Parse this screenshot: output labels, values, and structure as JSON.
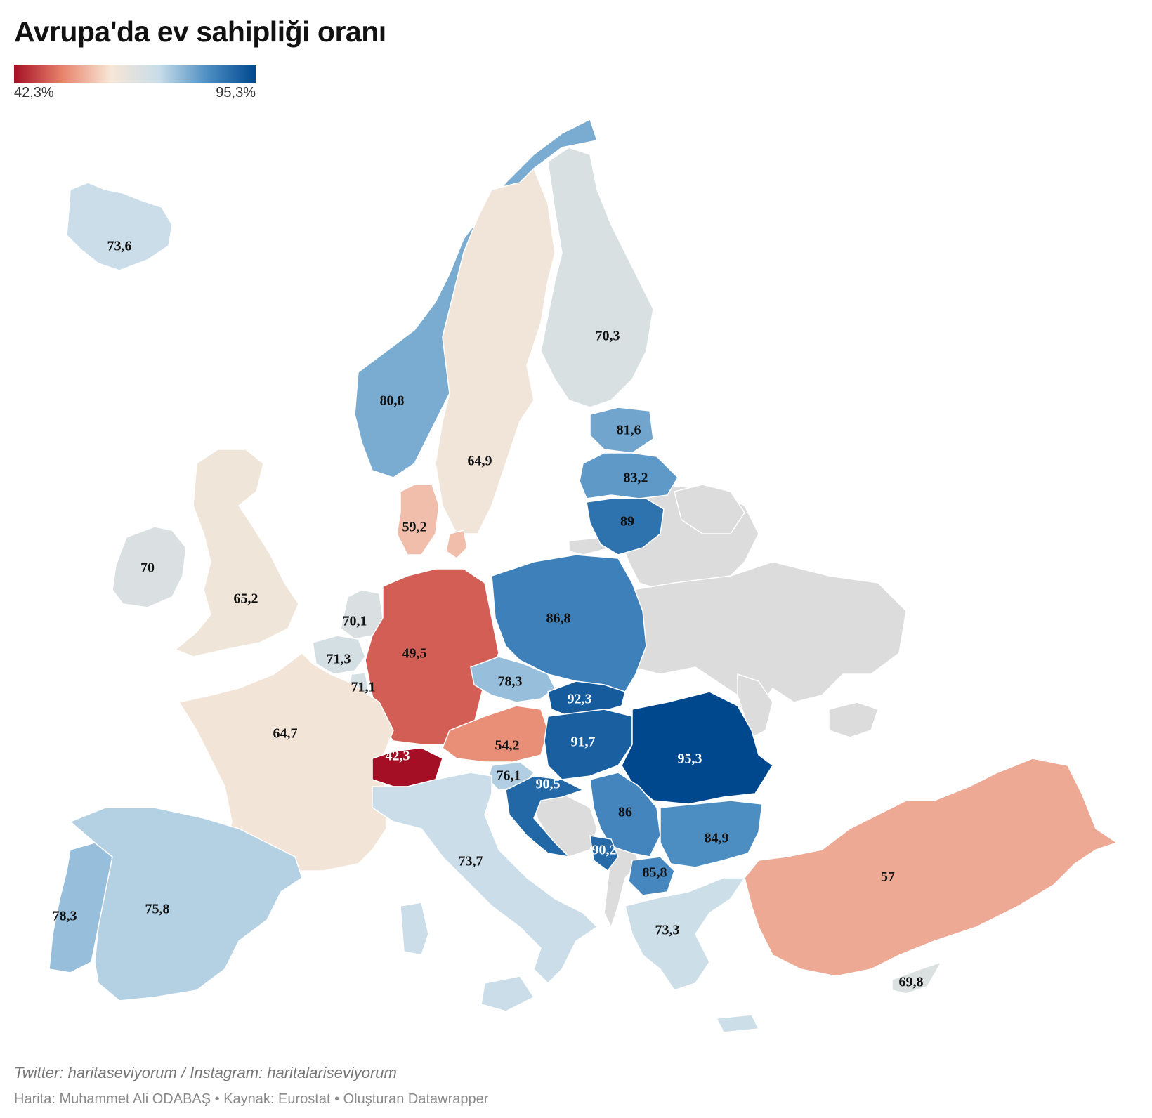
{
  "title": "Avrupa'da ev sahipliği oranı",
  "legend": {
    "min_label": "42,3%",
    "max_label": "95,3%",
    "min_value": 42.3,
    "max_value": 95.3,
    "colors": [
      "#a50f25",
      "#e7836b",
      "#f7e6d6",
      "#c8dde9",
      "#4d8ec3",
      "#00488e"
    ]
  },
  "no_data_color": "#dcdcdc",
  "regions": [
    {
      "id": "iceland",
      "label": "73,6",
      "value": 73.6
    },
    {
      "id": "norway",
      "label": "80,8",
      "value": 80.8
    },
    {
      "id": "sweden",
      "label": "64,9",
      "value": 64.9
    },
    {
      "id": "finland",
      "label": "70,3",
      "value": 70.3
    },
    {
      "id": "estonia",
      "label": "81,6",
      "value": 81.6
    },
    {
      "id": "latvia",
      "label": "83,2",
      "value": 83.2
    },
    {
      "id": "lithuania",
      "label": "89",
      "value": 89
    },
    {
      "id": "denmark",
      "label": "59,2",
      "value": 59.2
    },
    {
      "id": "ireland",
      "label": "70",
      "value": 70
    },
    {
      "id": "uk",
      "label": "65,2",
      "value": 65.2
    },
    {
      "id": "netherlands",
      "label": "70,1",
      "value": 70.1
    },
    {
      "id": "belgium",
      "label": "71,3",
      "value": 71.3
    },
    {
      "id": "luxembourg",
      "label": "71,1",
      "value": 71.1
    },
    {
      "id": "germany",
      "label": "49,5",
      "value": 49.5
    },
    {
      "id": "poland",
      "label": "86,8",
      "value": 86.8
    },
    {
      "id": "czechia",
      "label": "78,3",
      "value": 78.3
    },
    {
      "id": "slovakia",
      "label": "92,3",
      "value": 92.3
    },
    {
      "id": "austria",
      "label": "54,2",
      "value": 54.2
    },
    {
      "id": "hungary",
      "label": "91,7",
      "value": 91.7
    },
    {
      "id": "romania",
      "label": "95,3",
      "value": 95.3
    },
    {
      "id": "france",
      "label": "64,7",
      "value": 64.7
    },
    {
      "id": "switzerland",
      "label": "42,3",
      "value": 42.3
    },
    {
      "id": "slovenia",
      "label": "76,1",
      "value": 76.1
    },
    {
      "id": "croatia",
      "label": "90,5",
      "value": 90.5
    },
    {
      "id": "serbia",
      "label": "86",
      "value": 86
    },
    {
      "id": "bulgaria",
      "label": "84,9",
      "value": 84.9
    },
    {
      "id": "montenegro",
      "label": "90,2",
      "value": 90.2
    },
    {
      "id": "north-macedonia",
      "label": "85,8",
      "value": 85.8
    },
    {
      "id": "italy",
      "label": "73,7",
      "value": 73.7
    },
    {
      "id": "portugal",
      "label": "78,3",
      "value": 78.3
    },
    {
      "id": "spain",
      "label": "75,8",
      "value": 75.8
    },
    {
      "id": "greece",
      "label": "73,3",
      "value": 73.3
    },
    {
      "id": "turkey",
      "label": "57",
      "value": 57
    },
    {
      "id": "cyprus",
      "label": "69,8",
      "value": 69.8
    }
  ],
  "footer": {
    "twitter": "Twitter: haritaseviyorum / Instagram: haritalariseviyorum",
    "credits": "Harita: Muhammet Ali ODABAŞ • Kaynak: Eurostat • Oluşturan Datawrapper"
  }
}
